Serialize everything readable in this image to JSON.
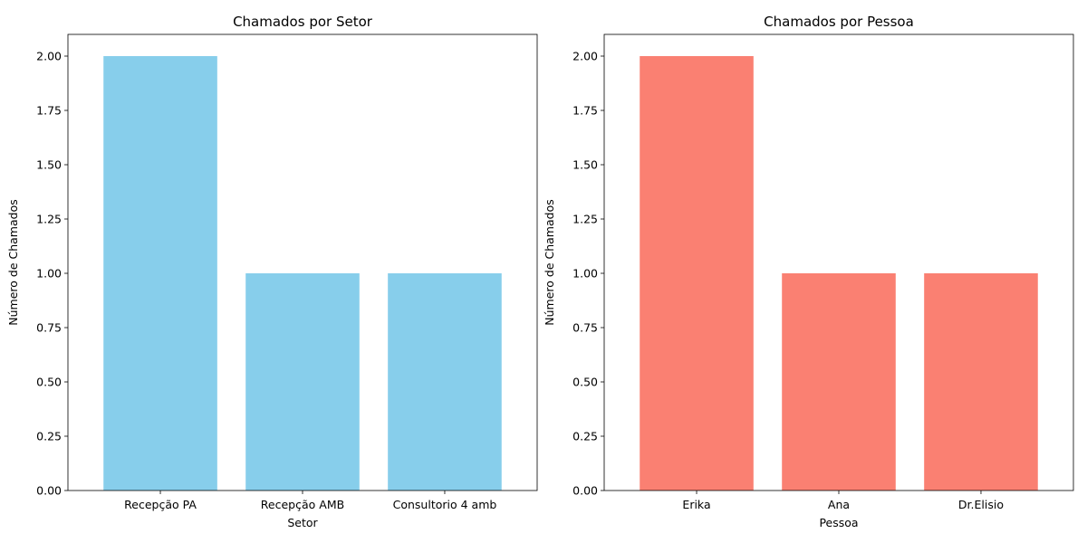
{
  "chart_data": [
    {
      "type": "bar",
      "title": "Chamados por Setor",
      "xlabel": "Setor",
      "ylabel": "Número de Chamados",
      "categories": [
        "Recepção PA",
        "Recepção AMB",
        "Consultorio 4 amb"
      ],
      "values": [
        2,
        1,
        1
      ],
      "color": "#87ceeb",
      "ylim": [
        0,
        2.1
      ],
      "yticks": [
        "0.00",
        "0.25",
        "0.50",
        "0.75",
        "1.00",
        "1.25",
        "1.50",
        "1.75",
        "2.00"
      ],
      "grid": false
    },
    {
      "type": "bar",
      "title": "Chamados por Pessoa",
      "xlabel": "Pessoa",
      "ylabel": "Número de Chamados",
      "categories": [
        "Erika",
        "Ana",
        "Dr.Elisio"
      ],
      "values": [
        2,
        1,
        1
      ],
      "color": "#fa8072",
      "ylim": [
        0,
        2.1
      ],
      "yticks": [
        "0.00",
        "0.25",
        "0.50",
        "0.75",
        "1.00",
        "1.25",
        "1.50",
        "1.75",
        "2.00"
      ],
      "grid": false
    }
  ]
}
